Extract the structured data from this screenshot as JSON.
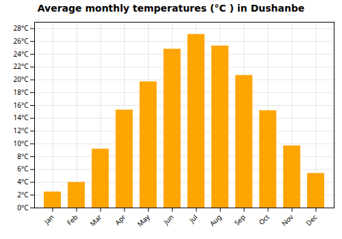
{
  "chart_data": {
    "type": "bar",
    "title": "Average monthly temperatures (°C ) in Dushanbe",
    "categories": [
      "Jan",
      "Feb",
      "Mar",
      "Apr",
      "May",
      "Jun",
      "Jul",
      "Aug",
      "Sep",
      "Oct",
      "Nov",
      "Dec"
    ],
    "values": [
      2.5,
      4.0,
      9.2,
      15.3,
      19.7,
      24.8,
      27.1,
      25.3,
      20.7,
      15.2,
      9.7,
      5.4
    ],
    "color": "#FFA500",
    "ylim": [
      0,
      29
    ],
    "yticks": [
      {
        "value": 0,
        "label": "0°C"
      },
      {
        "value": 2,
        "label": "2°C"
      },
      {
        "value": 4,
        "label": "4°C"
      },
      {
        "value": 6,
        "label": "6°C"
      },
      {
        "value": 8,
        "label": "8°C"
      },
      {
        "value": 10,
        "label": "10°C"
      },
      {
        "value": 12,
        "label": "12°C"
      },
      {
        "value": 14,
        "label": "14°C"
      },
      {
        "value": 16,
        "label": "16°C"
      },
      {
        "value": 18,
        "label": "18°C"
      },
      {
        "value": 20,
        "label": "20°C"
      },
      {
        "value": 22,
        "label": "22°C"
      },
      {
        "value": 24,
        "label": "24°C"
      },
      {
        "value": 26,
        "label": "26°C"
      },
      {
        "value": 28,
        "label": "28°C"
      }
    ],
    "grid": true
  }
}
